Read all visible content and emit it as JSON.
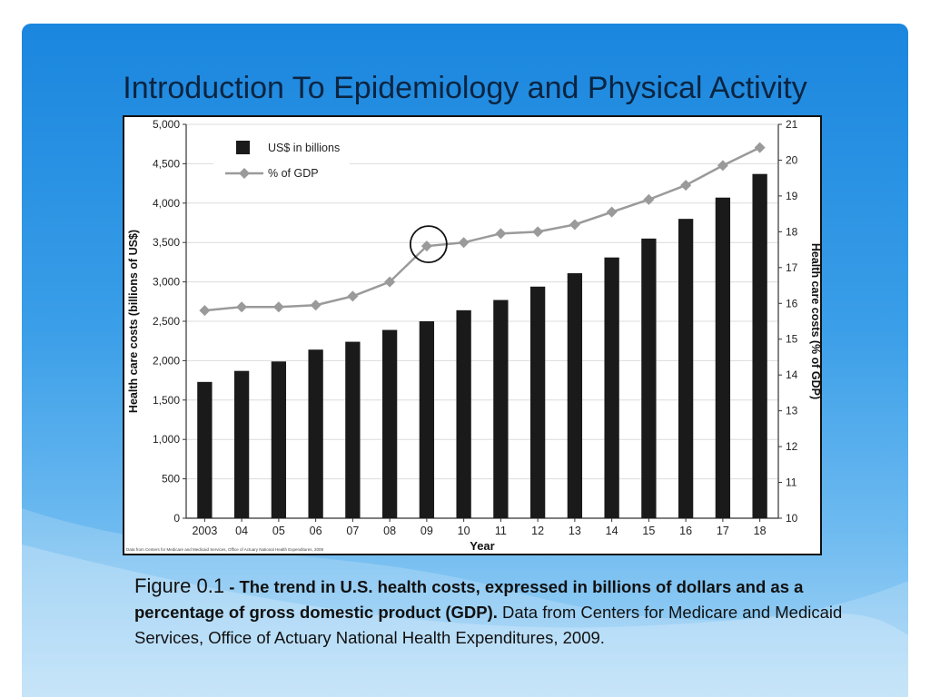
{
  "slide": {
    "title": "Introduction To Epidemiology and Physical Activity"
  },
  "caption": {
    "figure_label": "Figure 0.1",
    "bold_text": " - The trend in U.S. health costs, expressed in billions of dollars and as a percentage of gross domestic product (GDP).",
    "normal_text": " Data from Centers for Medicare and Medicaid Services, Office of Actuary National Health Expenditures, 2009."
  },
  "chart_data": {
    "type": "bar",
    "categories": [
      "2003",
      "04",
      "05",
      "06",
      "07",
      "08",
      "09",
      "10",
      "11",
      "12",
      "13",
      "14",
      "15",
      "16",
      "17",
      "18"
    ],
    "xlabel": "Year",
    "ylabel": "Health care costs (billions of US$)",
    "y2label": "Health care costs (% of GDP)",
    "ylim": [
      0,
      5000
    ],
    "y2lim": [
      10,
      21
    ],
    "yticks": [
      "0",
      "500",
      "1,000",
      "1,500",
      "2,000",
      "2,500",
      "3,000",
      "3,500",
      "4,000",
      "4,500",
      "5,000"
    ],
    "y2ticks": [
      "10",
      "11",
      "12",
      "13",
      "14",
      "15",
      "16",
      "17",
      "18",
      "19",
      "20",
      "21"
    ],
    "grid": true,
    "legend_position": "top-left",
    "source_note": "Data from Centers for Medicare and Medicaid Services, Office of Actuary National Health Expenditures, 2009",
    "series": [
      {
        "name": "US$ in billions",
        "kind": "bar",
        "axis": "left",
        "color": "#1a1a1a",
        "values": [
          1730,
          1870,
          1990,
          2140,
          2240,
          2390,
          2500,
          2640,
          2770,
          2940,
          3110,
          3310,
          3550,
          3800,
          4070,
          4370
        ]
      },
      {
        "name": "% of GDP",
        "kind": "line",
        "axis": "right",
        "color": "#9a9a9a",
        "values": [
          15.8,
          15.9,
          15.9,
          15.95,
          16.2,
          16.6,
          17.6,
          17.7,
          17.95,
          18.0,
          18.2,
          18.55,
          18.9,
          19.3,
          19.85,
          20.35
        ]
      }
    ],
    "annotation": {
      "type": "circle",
      "category": "09",
      "series": "% of GDP"
    }
  }
}
